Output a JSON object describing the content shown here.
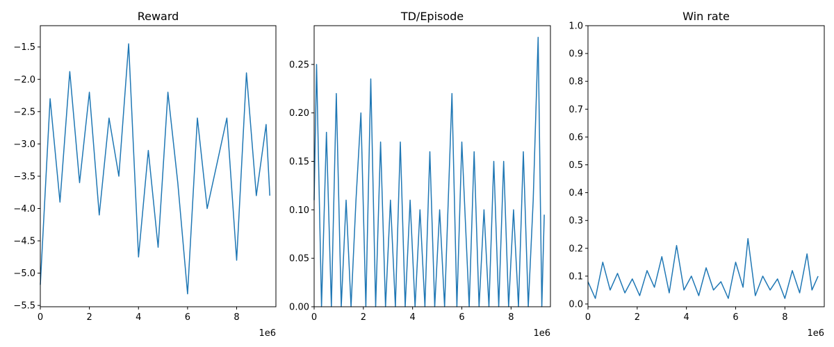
{
  "figure": {
    "background": "#ffffff",
    "line_color": "#1f77b4",
    "x_offset_label": "1e6"
  },
  "chart_data": [
    {
      "type": "line",
      "title": "Reward",
      "xlim": [
        0,
        9600000
      ],
      "ylim": [
        -5.52,
        -1.17
      ],
      "x_ticks": [
        0,
        2000000,
        4000000,
        6000000,
        8000000
      ],
      "x_tick_labels": [
        "0",
        "2",
        "4",
        "6",
        "8"
      ],
      "y_ticks": [
        -5.5,
        -5.0,
        -4.5,
        -4.0,
        -3.5,
        -3.0,
        -2.5,
        -2.0,
        -1.5
      ],
      "y_tick_labels": [
        "−5.5",
        "−5.0",
        "−4.5",
        "−4.0",
        "−3.5",
        "−3.0",
        "−2.5",
        "−2.0",
        "−1.5"
      ],
      "x_offset": "1e6",
      "series": [
        {
          "x": [
            0,
            400000,
            800000,
            1200000,
            1600000,
            2000000,
            2400000,
            2800000,
            3200000,
            3600000,
            4000000,
            4400000,
            4800000,
            5200000,
            5600000,
            6000000,
            6400000,
            6800000,
            7200000,
            7600000,
            8000000,
            8400000,
            8800000,
            9200000,
            9350000
          ],
          "y": [
            -5.18,
            -2.3,
            -3.9,
            -1.88,
            -3.6,
            -2.2,
            -4.1,
            -2.6,
            -3.5,
            -1.45,
            -4.75,
            -3.1,
            -4.6,
            -2.2,
            -3.6,
            -5.32,
            -2.6,
            -4.0,
            -3.3,
            -2.6,
            -4.8,
            -1.9,
            -3.8,
            -2.7,
            -3.8
          ]
        }
      ]
    },
    {
      "type": "line",
      "title": "TD/Episode",
      "xlim": [
        0,
        9600000
      ],
      "ylim": [
        0,
        0.29
      ],
      "x_ticks": [
        0,
        2000000,
        4000000,
        6000000,
        8000000
      ],
      "x_tick_labels": [
        "0",
        "2",
        "4",
        "6",
        "8"
      ],
      "y_ticks": [
        0.0,
        0.05,
        0.1,
        0.15,
        0.2,
        0.25
      ],
      "y_tick_labels": [
        "0.00",
        "0.05",
        "0.10",
        "0.15",
        "0.20",
        "0.25"
      ],
      "x_offset": "1e6",
      "series": [
        {
          "x": [
            0,
            100000,
            300000,
            500000,
            700000,
            900000,
            1100000,
            1300000,
            1500000,
            1700000,
            1900000,
            2100000,
            2300000,
            2500000,
            2700000,
            2900000,
            3100000,
            3300000,
            3500000,
            3700000,
            3900000,
            4100000,
            4300000,
            4500000,
            4700000,
            4900000,
            5100000,
            5300000,
            5600000,
            5800000,
            6000000,
            6300000,
            6500000,
            6700000,
            6900000,
            7100000,
            7300000,
            7500000,
            7700000,
            7900000,
            8100000,
            8300000,
            8500000,
            8700000,
            8900000,
            9100000,
            9250000,
            9350000
          ],
          "y": [
            0.11,
            0.25,
            0.0,
            0.18,
            0.0,
            0.22,
            0.0,
            0.11,
            0.0,
            0.11,
            0.2,
            0.0,
            0.235,
            0.0,
            0.17,
            0.0,
            0.11,
            0.0,
            0.17,
            0.0,
            0.11,
            0.0,
            0.1,
            0.0,
            0.16,
            0.0,
            0.1,
            0.0,
            0.22,
            0.0,
            0.17,
            0.0,
            0.16,
            0.0,
            0.1,
            0.0,
            0.15,
            0.0,
            0.15,
            0.0,
            0.1,
            0.0,
            0.16,
            0.0,
            0.11,
            0.278,
            0.0,
            0.095
          ]
        }
      ]
    },
    {
      "type": "line",
      "title": "Win rate",
      "xlim": [
        0,
        9600000
      ],
      "ylim": [
        -0.01,
        1.0
      ],
      "x_ticks": [
        0,
        2000000,
        4000000,
        6000000,
        8000000
      ],
      "x_tick_labels": [
        "0",
        "2",
        "4",
        "6",
        "8"
      ],
      "y_ticks": [
        0.0,
        0.1,
        0.2,
        0.3,
        0.4,
        0.5,
        0.6,
        0.7,
        0.8,
        0.9,
        1.0
      ],
      "y_tick_labels": [
        "0.0",
        "0.1",
        "0.2",
        "0.3",
        "0.4",
        "0.5",
        "0.6",
        "0.7",
        "0.8",
        "0.9",
        "1.0"
      ],
      "x_offset": "1e6",
      "series": [
        {
          "x": [
            0,
            300000,
            600000,
            900000,
            1200000,
            1500000,
            1800000,
            2100000,
            2400000,
            2700000,
            3000000,
            3300000,
            3600000,
            3900000,
            4200000,
            4500000,
            4800000,
            5100000,
            5400000,
            5700000,
            6000000,
            6300000,
            6500000,
            6800000,
            7100000,
            7400000,
            7700000,
            8000000,
            8300000,
            8600000,
            8900000,
            9100000,
            9350000
          ],
          "y": [
            0.08,
            0.02,
            0.15,
            0.05,
            0.11,
            0.04,
            0.09,
            0.03,
            0.12,
            0.06,
            0.17,
            0.04,
            0.21,
            0.05,
            0.1,
            0.03,
            0.13,
            0.05,
            0.08,
            0.02,
            0.15,
            0.06,
            0.235,
            0.03,
            0.1,
            0.05,
            0.09,
            0.02,
            0.12,
            0.04,
            0.18,
            0.05,
            0.1
          ]
        }
      ]
    }
  ]
}
